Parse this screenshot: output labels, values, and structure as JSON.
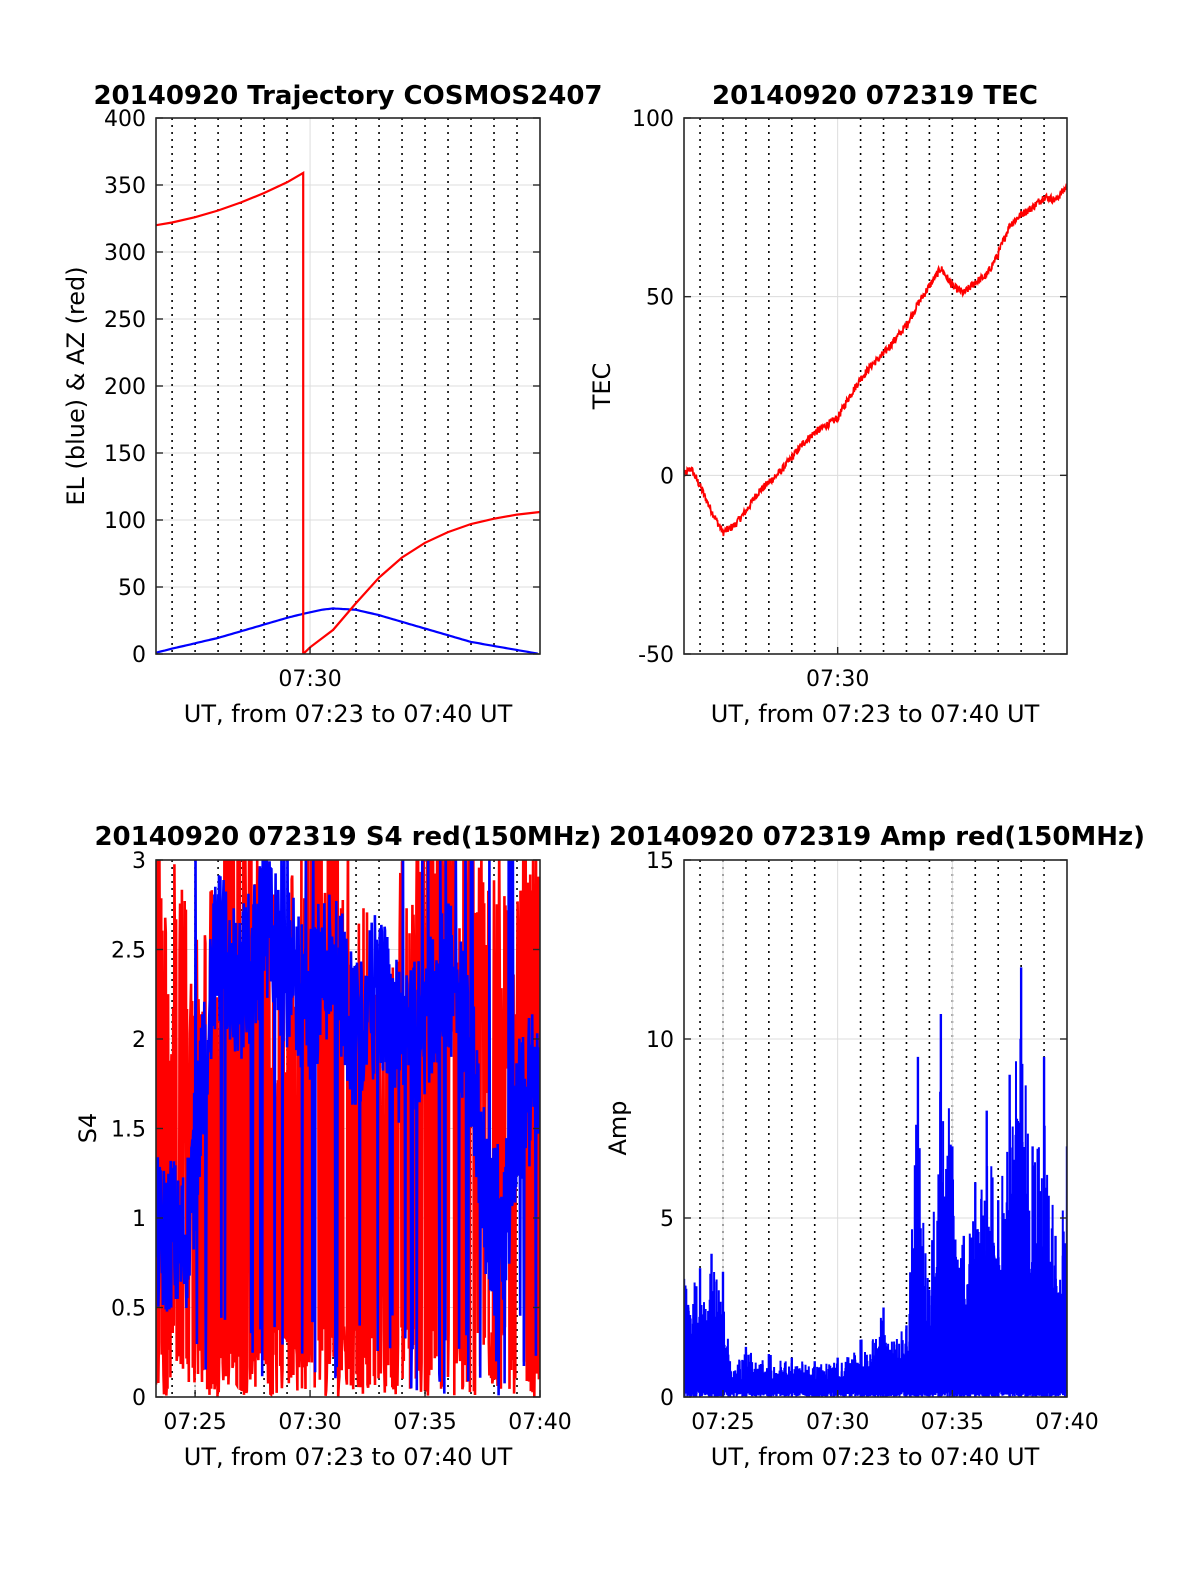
{
  "chart_data": [
    {
      "type": "line",
      "title": "20140920 Trajectory COSMOS2407",
      "xlabel": "UT, from 07:23 to 07:40 UT",
      "ylabel": "EL (blue) & AZ (red)",
      "x_unit": "minutes past 07:00 UT",
      "xlim": [
        23.3,
        40.0
      ],
      "ylim": [
        0,
        400
      ],
      "yticks": [
        0,
        50,
        100,
        150,
        200,
        250,
        300,
        350,
        400
      ],
      "xticks": [
        {
          "value": 30,
          "label": "07:30"
        }
      ],
      "grid": true,
      "colors": {
        "EL": "#0000ff",
        "AZ": "#ff0000"
      },
      "series": [
        {
          "x": [
            23.3,
            24,
            25,
            26,
            27,
            28,
            29,
            29.7,
            30.5,
            31,
            32,
            33,
            34,
            35,
            36,
            37,
            38,
            39,
            40
          ],
          "values": [
            1,
            4,
            8,
            12,
            17,
            22,
            27,
            30,
            33,
            34,
            33,
            29,
            24,
            19,
            14,
            9,
            6,
            3,
            0
          ]
        },
        {
          "x": [
            23.3,
            24,
            25,
            26,
            27,
            28,
            29,
            29.7,
            29.7,
            30,
            31,
            32,
            33,
            34,
            35,
            36,
            37,
            38,
            39,
            40
          ],
          "values": [
            320,
            322,
            326,
            331,
            337,
            344,
            352,
            359,
            0,
            5,
            18,
            38,
            57,
            72,
            83,
            91,
            97,
            101,
            104,
            106
          ]
        }
      ]
    },
    {
      "type": "line",
      "title": "20140920 072319 TEC",
      "xlabel": "UT, from 07:23 to 07:40 UT",
      "ylabel": "TEC",
      "x_unit": "minutes past 07:00 UT",
      "xlim": [
        23.3,
        40.0
      ],
      "ylim": [
        -50,
        100
      ],
      "yticks": [
        -50,
        0,
        50,
        100
      ],
      "xticks": [
        {
          "value": 30,
          "label": "07:30"
        }
      ],
      "grid": true,
      "colors": {
        "TEC": "#ff0000"
      },
      "series": [
        {
          "x": [
            23.3,
            23.6,
            24.0,
            24.5,
            25.0,
            25.5,
            26.0,
            26.5,
            27.0,
            27.5,
            28.0,
            28.5,
            29.0,
            29.5,
            30.0,
            30.5,
            31.0,
            31.5,
            32.0,
            32.5,
            33.0,
            33.5,
            34.0,
            34.5,
            35.0,
            35.5,
            36.0,
            36.5,
            37.0,
            37.5,
            38.0,
            38.5,
            39.0,
            39.5,
            40.0
          ],
          "values": [
            0,
            2,
            -3,
            -10,
            -16,
            -14,
            -10,
            -5,
            -2,
            1,
            5,
            9,
            12,
            14,
            16,
            22,
            27,
            31,
            34,
            38,
            42,
            48,
            53,
            58,
            53,
            51,
            54,
            56,
            62,
            70,
            73,
            75,
            78,
            77,
            81
          ]
        }
      ]
    },
    {
      "type": "line",
      "title": "20140920 072319 S4 red(150MHz)",
      "xlabel": "UT, from 07:23 to 07:40 UT",
      "ylabel": "S4",
      "x_unit": "minutes past 07:00 UT",
      "xlim": [
        23.3,
        40.0
      ],
      "ylim": [
        0,
        3
      ],
      "yticks": [
        0,
        0.5,
        1,
        1.5,
        2,
        2.5,
        3
      ],
      "xticks": [
        {
          "value": 25,
          "label": "07:25"
        },
        {
          "value": 30,
          "label": "07:30"
        },
        {
          "value": 35,
          "label": "07:35"
        },
        {
          "value": 40,
          "label": "07:40"
        }
      ],
      "grid": true,
      "colors": {
        "red": "#ff0000",
        "blue": "#0000ff"
      },
      "series": [
        {
          "x": [
            23.3,
            25.0,
            27.0,
            29.0,
            31.0,
            33.0,
            35.0,
            37.0,
            39.0,
            40.0
          ],
          "values": [
            2.3,
            1.6,
            2.5,
            1.8,
            2.7,
            1.4,
            2.6,
            2.2,
            2.0,
            2.9
          ],
          "note": "dense oscillation between 0 and 3 across full range"
        },
        {
          "x": [
            23.3,
            23.7,
            24.0,
            24.3,
            24.6,
            25.0,
            25.5,
            26.0,
            27.0,
            28.0,
            29.0,
            30.0,
            31.0,
            32.0,
            33.0,
            34.0,
            35.0,
            36.0,
            37.0,
            37.5,
            38.0,
            38.5,
            39.0,
            39.5,
            40.0
          ],
          "values": [
            0.9,
            0.85,
            0.95,
            0.8,
            0.9,
            1.3,
            2.1,
            2.5,
            2.3,
            2.6,
            2.4,
            2.2,
            2.5,
            2.0,
            2.3,
            1.9,
            2.1,
            2.4,
            1.9,
            1.2,
            0.95,
            1.0,
            1.6,
            1.7,
            1.8
          ]
        }
      ]
    },
    {
      "type": "line",
      "title": "20140920 072319 Amp red(150MHz)",
      "xlabel": "UT, from 07:23 to 07:40 UT",
      "ylabel": "Amp",
      "x_unit": "minutes past 07:00 UT",
      "xlim": [
        23.3,
        40.0
      ],
      "ylim": [
        0,
        15
      ],
      "yticks": [
        0,
        5,
        10,
        15
      ],
      "xticks": [
        {
          "value": 25,
          "label": "07:25"
        },
        {
          "value": 30,
          "label": "07:30"
        },
        {
          "value": 35,
          "label": "07:35"
        },
        {
          "value": 40,
          "label": "07:40"
        }
      ],
      "grid": true,
      "colors": {
        "Amp": "#0000ff"
      },
      "series": [
        {
          "x": [
            23.3,
            24.0,
            24.5,
            25.0,
            25.3,
            26.0,
            27.0,
            28.0,
            29.0,
            30.0,
            31.0,
            32.0,
            33.0,
            33.5,
            34.0,
            34.5,
            35.0,
            35.5,
            36.0,
            36.5,
            37.0,
            37.5,
            38.0,
            38.5,
            39.0,
            39.5,
            40.0
          ],
          "values": [
            3.3,
            3.6,
            4.0,
            3.5,
            1.0,
            1.4,
            1.2,
            1.1,
            1.0,
            1.1,
            1.6,
            2.5,
            2.0,
            9.5,
            3.0,
            10.7,
            7.0,
            4.5,
            6.0,
            8.0,
            5.5,
            9.0,
            12.0,
            7.0,
            9.5,
            4.5,
            7.0
          ]
        }
      ]
    }
  ]
}
